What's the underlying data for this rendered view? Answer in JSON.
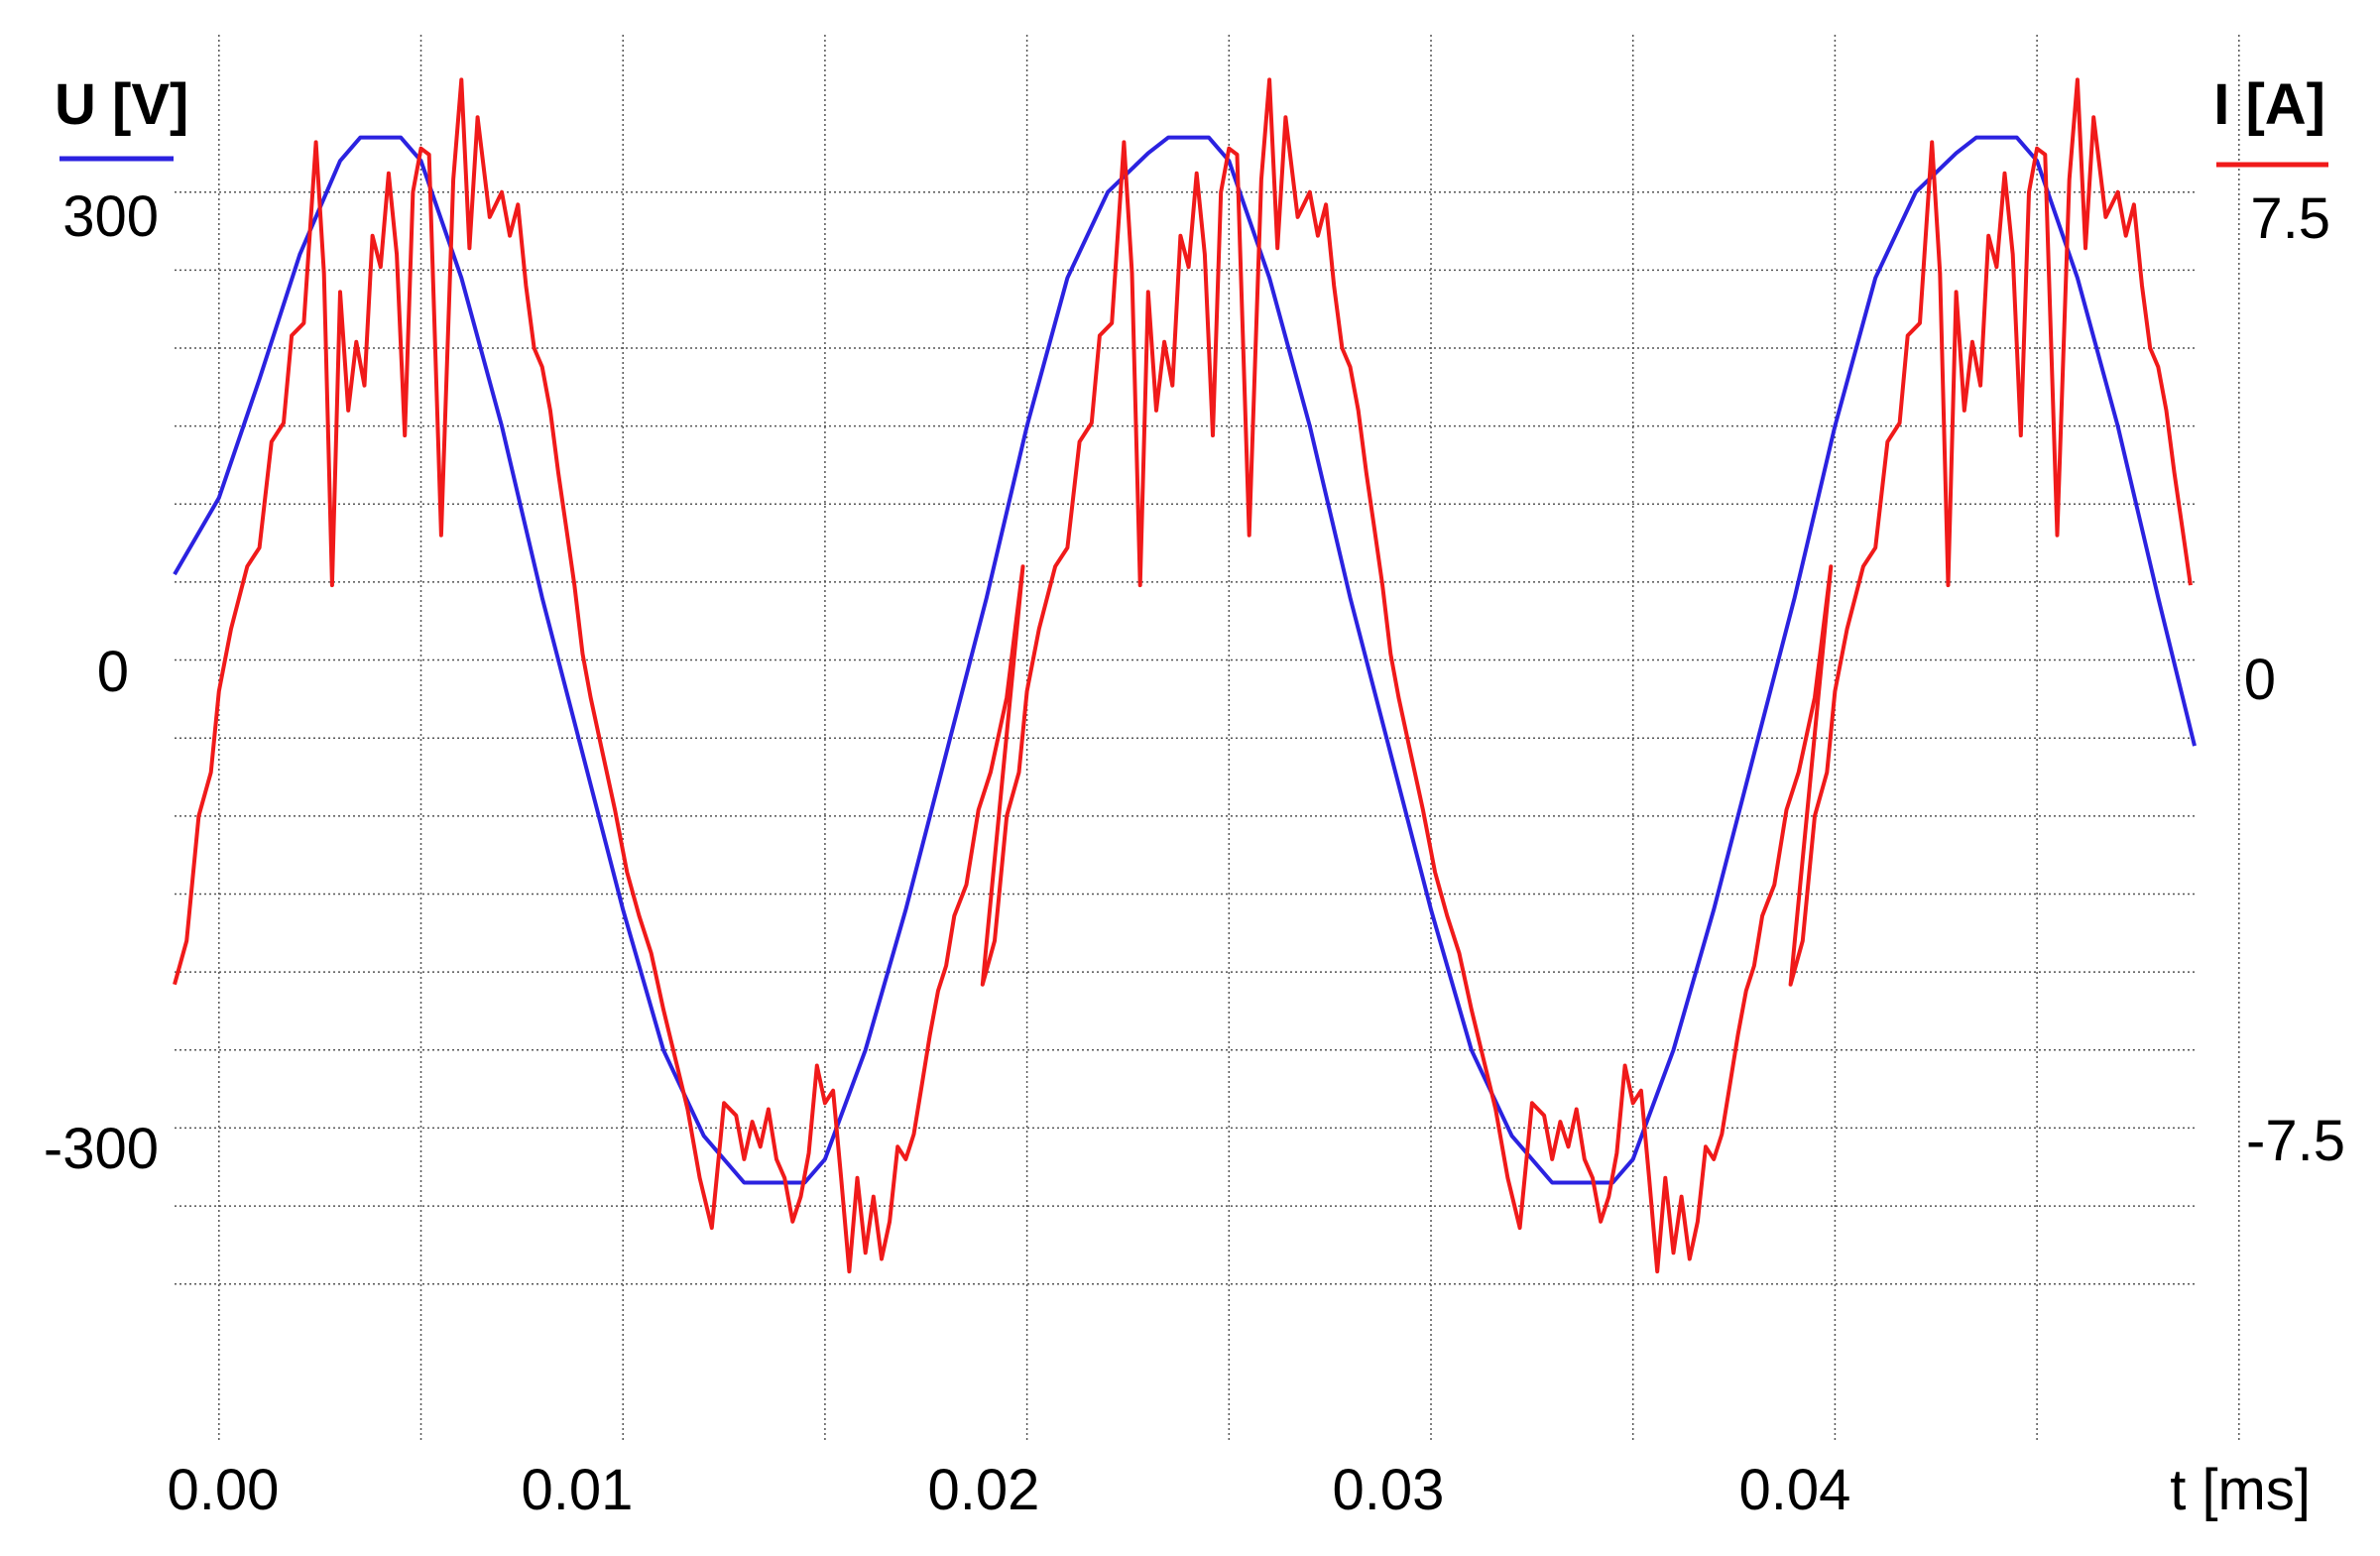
{
  "chart_data": {
    "type": "line",
    "xlabel": "t [ms]",
    "x_ticks": [
      "0.00",
      "0.01",
      "0.02",
      "0.03",
      "0.04"
    ],
    "x_range": [
      -0.0011,
      0.0489
    ],
    "left_axis": {
      "label": "U [V]",
      "ticks": [
        "300",
        "0",
        "-300"
      ],
      "range": [
        -500,
        385
      ],
      "color": "#2b22e0"
    },
    "right_axis": {
      "label": "I [A]",
      "ticks": [
        "7.5",
        "0",
        "-7.5"
      ],
      "range": [
        -12.5,
        9.625
      ],
      "color": "#f01a1a"
    },
    "grid": true,
    "series": [
      {
        "axis": "left",
        "color": "#2b22e0",
        "x": [
          -0.0011,
          0.0,
          0.001,
          0.002,
          0.003,
          0.0035,
          0.0045,
          0.005,
          0.006,
          0.007,
          0.008,
          0.009,
          0.01,
          0.011,
          0.012,
          0.013,
          0.0135,
          0.0145,
          0.015,
          0.016,
          0.017,
          0.018,
          0.019,
          0.02,
          0.021,
          0.022,
          0.023,
          0.0235,
          0.0245,
          0.025,
          0.026,
          0.027,
          0.028,
          0.029,
          0.03,
          0.031,
          0.032,
          0.033,
          0.0335,
          0.0345,
          0.035,
          0.036,
          0.037,
          0.038,
          0.039,
          0.04,
          0.041,
          0.042,
          0.043,
          0.0435,
          0.0445,
          0.045,
          0.046,
          0.047,
          0.048,
          0.0489
        ],
        "y": [
          55,
          104,
          180,
          260,
          320,
          335,
          335,
          320,
          245,
          150,
          40,
          -60,
          -160,
          -250,
          -305,
          -335,
          -335,
          -335,
          -320,
          -250,
          -160,
          -60,
          40,
          150,
          245,
          300,
          325,
          335,
          335,
          320,
          245,
          150,
          40,
          -60,
          -160,
          -250,
          -305,
          -335,
          -335,
          -335,
          -320,
          -250,
          -160,
          -60,
          40,
          150,
          245,
          300,
          325,
          335,
          335,
          320,
          245,
          150,
          40,
          -55
        ]
      },
      {
        "axis": "right",
        "color": "#f01a1a",
        "x": [
          -0.0011,
          -0.0008,
          -0.0005,
          -0.0002,
          0.0,
          0.0003,
          0.0007,
          0.001,
          0.0013,
          0.0016,
          0.0018,
          0.0021,
          0.0024,
          0.0026,
          0.0028,
          0.003,
          0.0032,
          0.0034,
          0.0036,
          0.0038,
          0.004,
          0.0042,
          0.0044,
          0.0046,
          0.0048,
          0.005,
          0.0052,
          0.0055,
          0.0058,
          0.006,
          0.0062,
          0.0064,
          0.0067,
          0.007,
          0.0072,
          0.0074,
          0.0076,
          0.0078,
          0.008,
          0.0082,
          0.0084,
          0.0086,
          0.0088,
          0.009,
          0.0092,
          0.0095,
          0.0098,
          0.0101,
          0.0104,
          0.0107,
          0.011,
          0.0113,
          0.0116,
          0.0119,
          0.0122,
          0.0125,
          0.0128,
          0.013,
          0.0132,
          0.0134,
          0.0136,
          0.0138,
          0.014,
          0.0142,
          0.0144,
          0.0146,
          0.0148,
          0.015,
          0.0152,
          0.0154,
          0.0156,
          0.0158,
          0.016,
          0.0162,
          0.0164,
          0.0166,
          0.0168,
          0.017,
          0.0172,
          0.0174,
          0.0176,
          0.0178,
          0.018,
          0.0182,
          0.0185,
          0.0188,
          0.0191,
          0.0195,
          0.0199
        ],
        "y": [
          -5.2,
          -4.5,
          -2.5,
          -1.8,
          -0.5,
          0.5,
          1.5,
          1.8,
          3.5,
          3.8,
          5.2,
          5.4,
          8.3,
          6.2,
          1.2,
          5.9,
          4.0,
          5.1,
          4.4,
          6.8,
          6.3,
          7.8,
          6.5,
          3.6,
          7.5,
          8.2,
          8.1,
          2.0,
          7.7,
          9.3,
          6.6,
          8.7,
          7.1,
          7.5,
          6.8,
          7.3,
          6.0,
          5.0,
          4.7,
          4.0,
          3.0,
          2.1,
          1.2,
          0.1,
          -0.6,
          -1.5,
          -2.4,
          -3.4,
          -4.1,
          -4.7,
          -5.6,
          -6.4,
          -7.2,
          -8.3,
          -9.1,
          -7.1,
          -7.3,
          -8.0,
          -7.4,
          -7.8,
          -7.2,
          -8.0,
          -8.3,
          -9.0,
          -8.6,
          -7.9,
          -6.5,
          -7.1,
          -6.9,
          -8.3,
          -9.8,
          -8.3,
          -9.5,
          -8.6,
          -9.6,
          -9.0,
          -7.8,
          -8.0,
          -7.6,
          -6.8,
          -6.0,
          -5.3,
          -4.9,
          -4.1,
          -3.6,
          -2.4,
          -1.8,
          -0.6,
          1.5
        ]
      }
    ]
  }
}
